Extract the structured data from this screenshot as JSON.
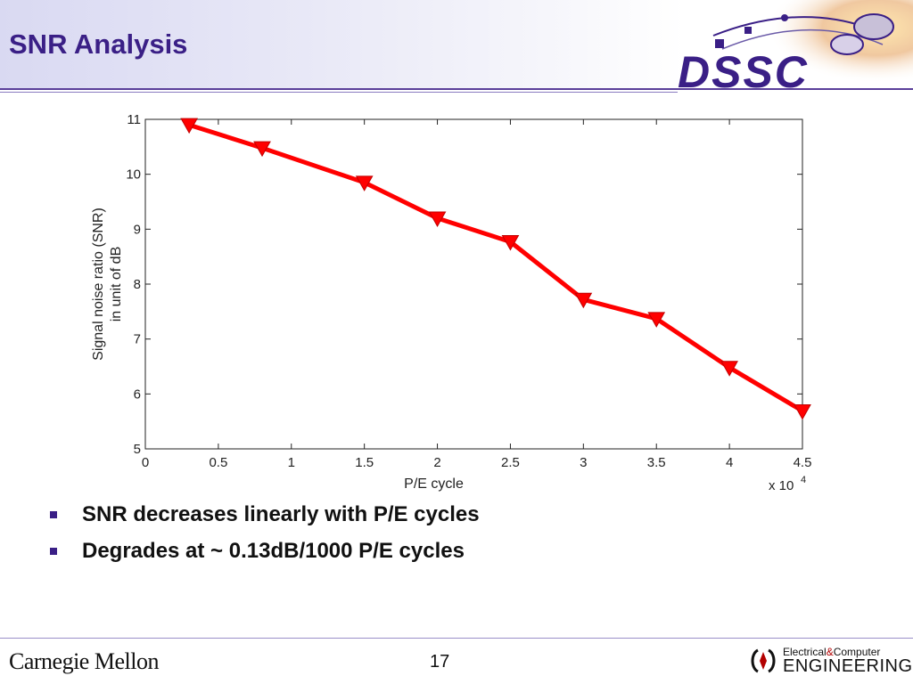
{
  "slide": {
    "title": "SNR Analysis",
    "page_number": "17"
  },
  "header_logo": {
    "text": "DSSC",
    "color": "#3a1f86"
  },
  "bullets": [
    "SNR decreases linearly with P/E cycles",
    "Degrades at ~ 0.13dB/1000 P/E cycles"
  ],
  "footer": {
    "left_logo": "Carnegie Mellon",
    "right_logo_top_1": "Electrical",
    "right_logo_amp": "&",
    "right_logo_top_2": "Computer",
    "right_logo_bottom": "ENGINEERING"
  },
  "colors": {
    "accent": "#3a1f86",
    "series": "#ff0000"
  },
  "chart_data": {
    "type": "line",
    "x": [
      3000,
      8000,
      15000,
      20000,
      25000,
      30000,
      35000,
      40000,
      45000
    ],
    "series": [
      {
        "values": [
          10.9,
          10.48,
          9.85,
          9.2,
          8.77,
          7.72,
          7.37,
          6.48,
          5.69
        ]
      }
    ],
    "xlabel": "P/E cycle",
    "x_multiplier": "x 10",
    "x_multiplier_exp": "4",
    "ylabel_line1": "Signal noise ratio (SNR)",
    "ylabel_line2": "in unit of dB",
    "xlim": [
      0,
      45000
    ],
    "ylim": [
      5,
      11
    ],
    "x_ticks": [
      0,
      5000,
      10000,
      15000,
      20000,
      25000,
      30000,
      35000,
      40000,
      45000
    ],
    "x_tick_labels": [
      "0",
      "0.5",
      "1",
      "1.5",
      "2",
      "2.5",
      "3",
      "3.5",
      "4",
      "4.5"
    ],
    "y_ticks": [
      5,
      6,
      7,
      8,
      9,
      10,
      11
    ],
    "y_tick_labels": [
      "5",
      "6",
      "7",
      "8",
      "9",
      "10",
      "11"
    ],
    "marker": "down-triangle",
    "grid": false,
    "legend": "none"
  }
}
